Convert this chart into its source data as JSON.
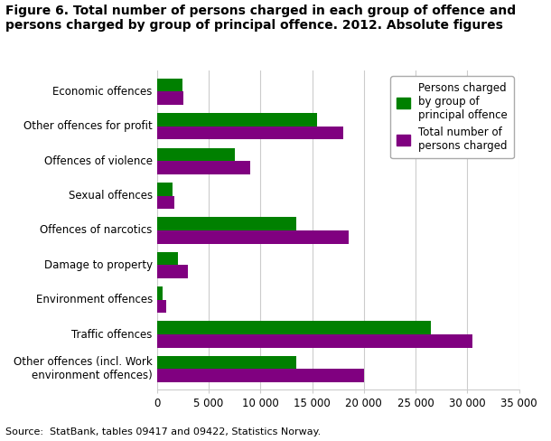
{
  "categories": [
    "Other offences (incl. Work\nenvironment offences)",
    "Traffic offences",
    "Environment offences",
    "Damage to property",
    "Offences of narcotics",
    "Sexual offences",
    "Offences of violence",
    "Other offences for profit",
    "Economic offences"
  ],
  "green_values": [
    13500,
    26500,
    600,
    2000,
    13500,
    1500,
    7500,
    15500,
    2500
  ],
  "purple_values": [
    20000,
    30500,
    900,
    3000,
    18500,
    1700,
    9000,
    18000,
    2600
  ],
  "green_color": "#008000",
  "purple_color": "#800080",
  "title_line1": "Figure 6. Total number of persons charged in each group of offence and",
  "title_line2": "persons charged by group of principal offence. 2012. Absolute figures",
  "legend_green": "Persons charged\nby group of\nprincipal offence",
  "legend_purple": "Total number of\npersons charged",
  "xlim": [
    0,
    35000
  ],
  "xticks": [
    0,
    5000,
    10000,
    15000,
    20000,
    25000,
    30000,
    35000
  ],
  "xtick_labels": [
    "0",
    "5 000",
    "10 000",
    "15 000",
    "20 000",
    "25 000",
    "30 000",
    "35 000"
  ],
  "source_text": "Source:  StatBank, tables 09417 and 09422, Statistics Norway.",
  "title_fontsize": 10,
  "tick_fontsize": 8.5,
  "bar_height": 0.38,
  "background_color": "#ffffff",
  "grid_color": "#cccccc"
}
